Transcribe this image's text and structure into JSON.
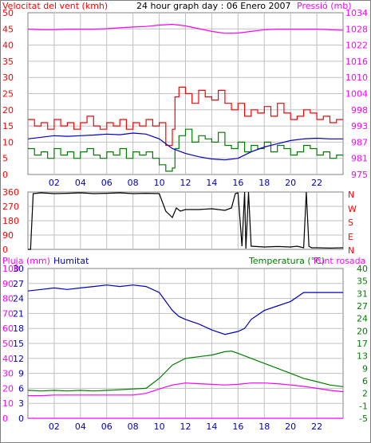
{
  "colors": {
    "wind": "#ff0000",
    "gust": "#ff0000",
    "pressure": "#ff00ff",
    "humidity": "#0000c0",
    "temperature": "#008000",
    "dewpoint": "#ff00ff",
    "rain": "#ff00ff",
    "grid": "#c0c0c0",
    "frame": "#808080"
  },
  "header": {
    "left": "Velocitat del vent (kmh)",
    "center": "24 hour graph day : 06 Enero 2007",
    "right": "Pressió (mb)"
  },
  "direction_letters": [
    "N",
    "W",
    "S",
    "E",
    "N"
  ],
  "bottom_header": {
    "left_rain": "Pluja (mm)",
    "left_hum": "Humitat",
    "right_temp": "Temperatura (°C)",
    "right_dew": "Punt rosada"
  },
  "chart_data": [
    {
      "id": "wind",
      "type": "line",
      "x_ticks": [
        "02",
        "04",
        "06",
        "08",
        "10",
        "12",
        "14",
        "16",
        "18",
        "20",
        "22"
      ],
      "xlim": [
        0,
        24
      ],
      "y_left_ticks": [
        "0",
        "5",
        "10",
        "15",
        "20",
        "25",
        "30",
        "35",
        "40",
        "45",
        "50"
      ],
      "ylim_left": [
        0,
        50
      ],
      "y_right_ticks": [
        "975",
        "981",
        "987",
        "993",
        "998",
        "1004",
        "1010",
        "1016",
        "1022",
        "1028",
        "1034"
      ],
      "ylim_right": [
        975,
        1034
      ],
      "grid": true,
      "series": [
        {
          "key": "gust",
          "axis": "left",
          "x": [
            0,
            0.5,
            1,
            1.5,
            2,
            2.5,
            3,
            3.5,
            4,
            4.5,
            5,
            5.5,
            6,
            6.5,
            7,
            7.5,
            8,
            8.5,
            9,
            9.5,
            10,
            10.5,
            11,
            11.2,
            11.5,
            12,
            12.5,
            13,
            13.5,
            14,
            14.5,
            15,
            15.5,
            16,
            16.5,
            17,
            17.5,
            18,
            18.5,
            19,
            19.5,
            20,
            20.5,
            21,
            21.5,
            22,
            22.5,
            23,
            23.5
          ],
          "values": [
            17,
            15,
            16,
            14,
            17,
            15,
            16,
            14,
            16,
            18,
            15,
            14,
            16,
            15,
            17,
            14,
            16,
            15,
            17,
            15,
            16,
            9,
            14,
            24,
            27,
            25,
            22,
            26,
            24,
            23,
            26,
            22,
            20,
            22,
            18,
            20,
            19,
            21,
            18,
            22,
            19,
            17,
            18,
            20,
            19,
            17,
            18,
            16,
            17
          ]
        },
        {
          "key": "wind",
          "axis": "left",
          "x": [
            0,
            0.5,
            1,
            1.5,
            2,
            2.5,
            3,
            3.5,
            4,
            4.5,
            5,
            5.5,
            6,
            6.5,
            7,
            7.5,
            8,
            8.5,
            9,
            9.5,
            10,
            10.5,
            11,
            11.2,
            11.5,
            12,
            12.5,
            13,
            13.5,
            14,
            14.5,
            15,
            15.5,
            16,
            16.5,
            17,
            17.5,
            18,
            18.5,
            19,
            19.5,
            20,
            20.5,
            21,
            21.5,
            22,
            22.5,
            23,
            23.5
          ],
          "values": [
            8,
            6,
            7,
            5,
            8,
            6,
            7,
            5,
            7,
            8,
            6,
            5,
            7,
            6,
            8,
            5,
            7,
            6,
            7,
            5,
            3,
            1,
            2,
            8,
            12,
            14,
            10,
            12,
            11,
            10,
            13,
            9,
            8,
            10,
            7,
            9,
            8,
            10,
            7,
            9,
            8,
            6,
            7,
            9,
            8,
            6,
            7,
            5,
            6
          ]
        },
        {
          "key": "pressure",
          "axis": "right",
          "x": [
            0,
            1,
            2,
            3,
            4,
            5,
            6,
            7,
            8,
            9,
            10,
            11,
            12,
            13,
            14,
            15,
            16,
            17,
            18,
            19,
            20,
            21,
            22,
            23,
            24
          ],
          "values": [
            1028,
            1027.8,
            1027.8,
            1028,
            1028,
            1028,
            1028.2,
            1028.5,
            1028.8,
            1029,
            1029.5,
            1029.8,
            1029.2,
            1028.2,
            1027.2,
            1026.5,
            1026.6,
            1027.2,
            1027.8,
            1028,
            1028,
            1028,
            1028,
            1027.8,
            1027.6
          ]
        },
        {
          "key": "humidity",
          "axis": "left_scaled",
          "x": [
            0,
            1,
            2,
            3,
            4,
            5,
            6,
            7,
            8,
            9,
            10,
            11,
            12,
            13,
            14,
            15,
            16,
            17,
            18,
            19,
            20,
            21,
            22,
            23,
            24
          ],
          "values": [
            11,
            11.5,
            12,
            11.8,
            12,
            12.2,
            12.5,
            12.3,
            12.8,
            12.5,
            11,
            8,
            6.5,
            5.5,
            4.8,
            4.5,
            5,
            7,
            8.5,
            9.5,
            10.5,
            11,
            11.2,
            11,
            11
          ]
        }
      ]
    },
    {
      "id": "direction",
      "type": "line",
      "x_ticks": [],
      "xlim": [
        0,
        24
      ],
      "y_left_ticks": [
        "0",
        "90",
        "180",
        "270",
        "360"
      ],
      "ylim_left": [
        0,
        360
      ],
      "grid": true,
      "series": [
        {
          "key": "direction",
          "axis": "left",
          "x": [
            0,
            0.2,
            0.4,
            1,
            2,
            3,
            4,
            5,
            6,
            7,
            8,
            9,
            10,
            10.5,
            11,
            11.3,
            11.6,
            12,
            13,
            14,
            15,
            15.5,
            15.8,
            16,
            16.3,
            16.5,
            16.6,
            16.8,
            17,
            18,
            19,
            20,
            20.5,
            21,
            21.2,
            21.4,
            21.6,
            22,
            23,
            24
          ],
          "values": [
            0,
            0,
            350,
            355,
            350,
            352,
            355,
            350,
            352,
            355,
            350,
            352,
            350,
            240,
            200,
            260,
            240,
            250,
            250,
            255,
            245,
            260,
            350,
            355,
            20,
            360,
            5,
            360,
            20,
            15,
            18,
            15,
            20,
            10,
            360,
            20,
            10,
            10,
            8,
            10
          ]
        }
      ]
    },
    {
      "id": "temp_hum",
      "type": "line",
      "x_ticks": [
        "02",
        "04",
        "06",
        "08",
        "10",
        "12",
        "14",
        "16",
        "18",
        "20",
        "22"
      ],
      "xlim": [
        0,
        24
      ],
      "y_left_ticks": [
        "0",
        "10",
        "20",
        "30",
        "40",
        "50",
        "60",
        "70",
        "80",
        "90",
        "100"
      ],
      "y_left2_ticks": [
        "0",
        "3",
        "6",
        "9",
        "12",
        "15",
        "18",
        "21",
        "24",
        "27",
        "30"
      ],
      "ylim_left": [
        0,
        100
      ],
      "y_right_ticks": [
        "-5",
        "-1",
        "2",
        "6",
        "9",
        "13",
        "17",
        "20",
        "24",
        "27",
        "31",
        "35",
        "40"
      ],
      "ylim_right": [
        -5,
        40
      ],
      "grid": true,
      "series": [
        {
          "key": "humidity",
          "axis": "left",
          "x": [
            0,
            1,
            2,
            3,
            4,
            5,
            6,
            7,
            8,
            9,
            10,
            10.5,
            11,
            11.5,
            12,
            13,
            14,
            15,
            16,
            16.5,
            17,
            18,
            19,
            20,
            21,
            22,
            23,
            24
          ],
          "values": [
            85,
            86,
            87,
            86,
            87,
            88,
            89,
            88,
            89,
            88,
            84,
            78,
            72,
            68,
            66,
            63,
            59,
            56,
            58,
            60,
            66,
            72,
            75,
            78,
            84,
            84,
            84,
            84
          ]
        },
        {
          "key": "temperature",
          "axis": "right",
          "x": [
            0,
            1,
            2,
            3,
            4,
            5,
            6,
            7,
            8,
            9,
            10,
            10.5,
            11,
            12,
            13,
            14,
            15,
            15.5,
            16,
            17,
            18,
            19,
            20,
            21,
            22,
            23,
            24
          ],
          "values": [
            3.4,
            3.2,
            3.4,
            3.2,
            3.4,
            3.2,
            3.4,
            3.6,
            3.8,
            4,
            7,
            9,
            11,
            13,
            13.5,
            14,
            15,
            15.2,
            14.5,
            13,
            11.5,
            10,
            8.5,
            7,
            6,
            5,
            4.5
          ]
        },
        {
          "key": "dewpoint",
          "axis": "right",
          "x": [
            0,
            1,
            2,
            3,
            4,
            5,
            6,
            7,
            8,
            9,
            10,
            11,
            12,
            13,
            14,
            15,
            16,
            17,
            18,
            19,
            20,
            21,
            22,
            23,
            24
          ],
          "values": [
            1.8,
            1.8,
            2,
            2,
            2,
            2,
            2,
            2,
            2,
            2.5,
            3.8,
            5,
            5.6,
            5.4,
            5.2,
            5,
            5.2,
            5.6,
            5.6,
            5.4,
            5,
            4.6,
            4,
            3.4,
            3
          ]
        },
        {
          "key": "rain",
          "axis": "left",
          "x": [
            0,
            24
          ],
          "values": [
            0,
            0
          ]
        }
      ]
    }
  ]
}
